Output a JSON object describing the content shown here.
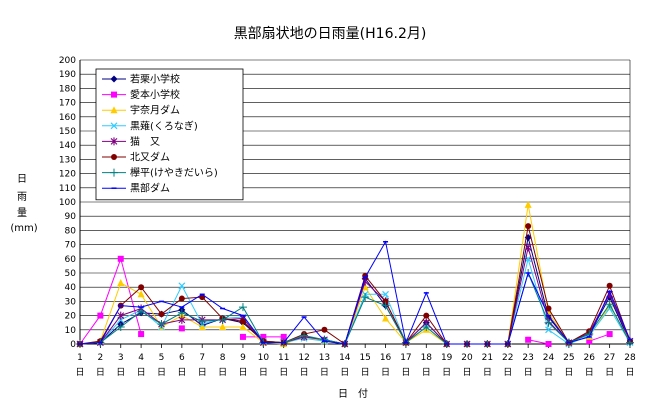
{
  "chart_data": {
    "type": "line",
    "title": "黒部扇状地の日雨量(H16.2月)",
    "xlabel": "日　付",
    "ylabel": [
      "日",
      "雨",
      "量",
      "(mm)"
    ],
    "ylim": [
      0,
      200
    ],
    "ytick_step": 10,
    "grid": true,
    "legend_position": "top-left",
    "x": [
      1,
      2,
      3,
      4,
      5,
      6,
      7,
      8,
      9,
      10,
      11,
      12,
      13,
      14,
      15,
      16,
      17,
      18,
      19,
      20,
      21,
      22,
      23,
      24,
      25,
      26,
      27,
      28
    ],
    "x_tick_labels": [
      "1",
      "2",
      "3",
      "4",
      "5",
      "6",
      "7",
      "8",
      "9",
      "10",
      "11",
      "12",
      "13",
      "14",
      "15",
      "16",
      "17",
      "18",
      "19",
      "20",
      "21",
      "22",
      "23",
      "24",
      "25",
      "26",
      "27",
      "28"
    ],
    "x_tick_suffix": "日",
    "series": [
      {
        "name": "若栗小学校",
        "color": "#000080",
        "marker": "diamond",
        "values": [
          0,
          1,
          14,
          22,
          21,
          24,
          13,
          18,
          15,
          2,
          1,
          5,
          3,
          0,
          46,
          27,
          1,
          15,
          0,
          0,
          0,
          0,
          75,
          19,
          1,
          7,
          33,
          1
        ]
      },
      {
        "name": "愛本小学校",
        "color": "#ff00ff",
        "marker": "square",
        "values": [
          0,
          20,
          60,
          7,
          null,
          11,
          null,
          null,
          5,
          5,
          5,
          null,
          null,
          null,
          null,
          null,
          null,
          null,
          null,
          null,
          null,
          null,
          3,
          0,
          null,
          2,
          7,
          null
        ]
      },
      {
        "name": "宇奈月ダム",
        "color": "#ffcc00",
        "marker": "triangle",
        "values": [
          0,
          2,
          43,
          35,
          12,
          20,
          12,
          12,
          12,
          1,
          0,
          5,
          2,
          0,
          40,
          18,
          1,
          10,
          0,
          0,
          0,
          0,
          98,
          22,
          1,
          5,
          27,
          2
        ]
      },
      {
        "name": "黒薙(くろなぎ)",
        "color": "#33ccff",
        "marker": "x",
        "values": [
          0,
          1,
          17,
          24,
          12,
          41,
          14,
          18,
          19,
          2,
          1,
          4,
          2,
          0,
          35,
          35,
          1,
          12,
          0,
          0,
          0,
          0,
          60,
          10,
          0,
          6,
          25,
          1
        ]
      },
      {
        "name": "猫　又",
        "color": "#800080",
        "marker": "star",
        "values": [
          0,
          1,
          20,
          25,
          14,
          17,
          17,
          17,
          18,
          1,
          1,
          5,
          3,
          0,
          44,
          30,
          1,
          15,
          0,
          0,
          0,
          0,
          68,
          16,
          1,
          8,
          35,
          2
        ]
      },
      {
        "name": "北又ダム",
        "color": "#800000",
        "marker": "circle",
        "values": [
          0,
          2,
          27,
          40,
          21,
          32,
          33,
          18,
          16,
          2,
          1,
          7,
          10,
          0,
          48,
          30,
          1,
          20,
          0,
          0,
          0,
          0,
          83,
          25,
          1,
          9,
          41,
          2
        ]
      },
      {
        "name": "欅平(けやきだいら)",
        "color": "#008080",
        "marker": "plus",
        "values": [
          0,
          1,
          12,
          23,
          14,
          22,
          16,
          17,
          26,
          1,
          1,
          6,
          3,
          0,
          33,
          27,
          1,
          12,
          0,
          0,
          0,
          0,
          50,
          15,
          1,
          7,
          28,
          1
        ]
      },
      {
        "name": "黒部ダム",
        "color": "#0000ff",
        "marker": "dash",
        "values": [
          0,
          1,
          27,
          26,
          30,
          26,
          35,
          25,
          20,
          1,
          1,
          19,
          2,
          0,
          47,
          72,
          1,
          36,
          0,
          0,
          0,
          0,
          50,
          20,
          1,
          5,
          37,
          3
        ]
      }
    ]
  }
}
